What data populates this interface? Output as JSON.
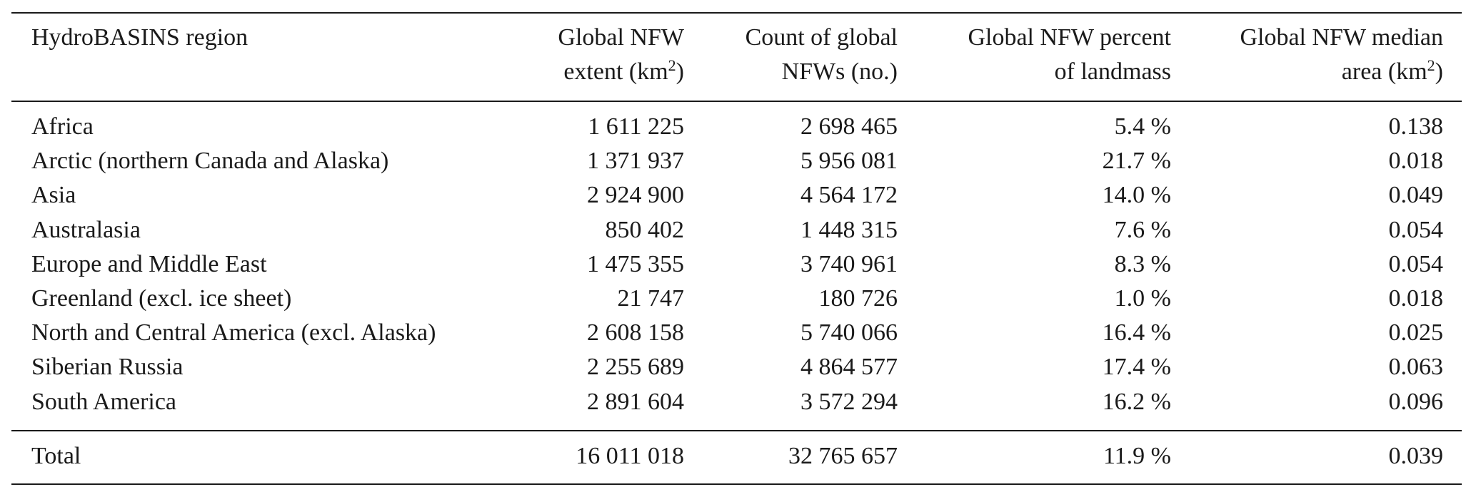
{
  "table": {
    "header": [
      [
        [
          {
            "text": "HydroBASINS region"
          }
        ]
      ],
      [
        [
          {
            "text": "Global NFW"
          }
        ],
        [
          {
            "text": "extent (km"
          },
          {
            "text": "2",
            "sup": true
          },
          {
            "text": ")"
          }
        ]
      ],
      [
        [
          {
            "text": "Count of global"
          }
        ],
        [
          {
            "text": "NFWs (no.)"
          }
        ]
      ],
      [
        [
          {
            "text": "Global NFW percent"
          }
        ],
        [
          {
            "text": "of landmass"
          }
        ]
      ],
      [
        [
          {
            "text": "Global NFW median"
          }
        ],
        [
          {
            "text": "area (km"
          },
          {
            "text": "2",
            "sup": true
          },
          {
            "text": ")"
          }
        ]
      ]
    ],
    "rows": [
      [
        "Africa",
        "1 611 225",
        "2 698 465",
        "5.4 %",
        "0.138"
      ],
      [
        "Arctic (northern Canada and Alaska)",
        "1 371 937",
        "5 956 081",
        "21.7 %",
        "0.018"
      ],
      [
        "Asia",
        "2 924 900",
        "4 564 172",
        "14.0 %",
        "0.049"
      ],
      [
        "Australasia",
        "850 402",
        "1 448 315",
        "7.6 %",
        "0.054"
      ],
      [
        "Europe and Middle East",
        "1 475 355",
        "3 740 961",
        "8.3 %",
        "0.054"
      ],
      [
        "Greenland (excl. ice sheet)",
        "21 747",
        "180 726",
        "1.0 %",
        "0.018"
      ],
      [
        "North and Central America (excl. Alaska)",
        "2 608 158",
        "5 740 066",
        "16.4 %",
        "0.025"
      ],
      [
        "Siberian Russia",
        "2 255 689",
        "4 864 577",
        "17.4 %",
        "0.063"
      ],
      [
        "South America",
        "2 891 604",
        "3 572 294",
        "16.2 %",
        "0.096"
      ]
    ],
    "total": [
      "Total",
      "16 011 018",
      "32 765 657",
      "11.9 %",
      "0.039"
    ]
  }
}
